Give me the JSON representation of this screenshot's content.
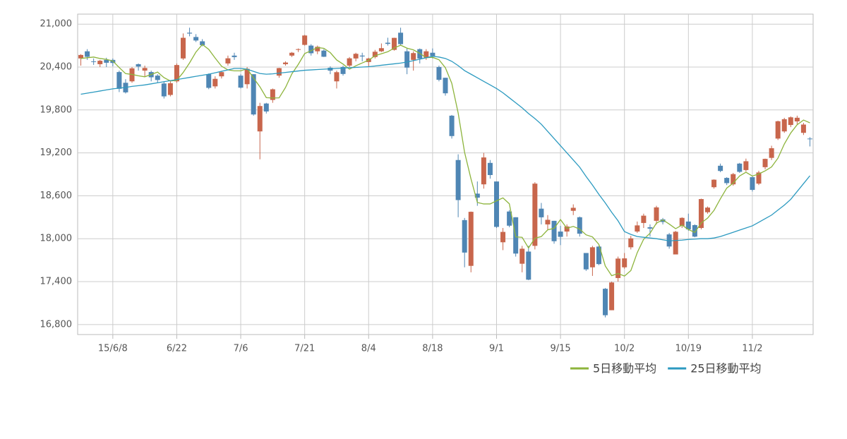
{
  "chart_data": {
    "type": "candlestick",
    "categories": [
      null,
      null,
      null,
      null,
      null,
      "15/6/8",
      null,
      null,
      null,
      null,
      null,
      null,
      null,
      null,
      null,
      "6/22",
      null,
      null,
      null,
      null,
      null,
      null,
      null,
      null,
      null,
      "7/6",
      null,
      null,
      null,
      null,
      null,
      null,
      null,
      null,
      null,
      "7/21",
      null,
      null,
      null,
      null,
      null,
      null,
      null,
      null,
      null,
      "8/4",
      null,
      null,
      null,
      null,
      null,
      null,
      null,
      null,
      null,
      "8/18",
      null,
      null,
      null,
      null,
      null,
      null,
      null,
      null,
      null,
      "9/1",
      null,
      null,
      null,
      null,
      null,
      null,
      null,
      null,
      null,
      "9/15",
      null,
      null,
      null,
      null,
      null,
      null,
      null,
      null,
      null,
      "10/2",
      null,
      null,
      null,
      null,
      null,
      null,
      null,
      null,
      null,
      "10/19",
      null,
      null,
      null,
      null,
      null,
      null,
      null,
      null,
      null,
      "11/2",
      null,
      null,
      null,
      null,
      null,
      null,
      null,
      null,
      null
    ],
    "open": [
      20520,
      20620,
      20480,
      20440,
      20500,
      20500,
      20330,
      20180,
      20200,
      20440,
      20350,
      20330,
      20280,
      20170,
      20010,
      20200,
      20520,
      20880,
      20820,
      20760,
      20300,
      20130,
      20270,
      20450,
      20560,
      20280,
      20160,
      20300,
      19500,
      19890,
      19940,
      20280,
      20440,
      20560,
      20640,
      20710,
      20700,
      20620,
      20630,
      20390,
      20200,
      20400,
      20420,
      20520,
      20560,
      20470,
      20540,
      20620,
      20740,
      20640,
      20880,
      20620,
      20500,
      20650,
      20530,
      20600,
      20400,
      20250,
      19720,
      19100,
      18260,
      17620,
      18630,
      18760,
      19060,
      18800,
      17950,
      18380,
      18300,
      17650,
      17820,
      17900,
      18420,
      18200,
      18250,
      18100,
      18100,
      18390,
      18300,
      17800,
      17600,
      17890,
      17300,
      17000,
      17450,
      17600,
      17880,
      18100,
      18220,
      18160,
      18250,
      18270,
      18060,
      17780,
      18180,
      18240,
      18190,
      18150,
      18370,
      18720,
      19020,
      18850,
      18760,
      19050,
      18960,
      18860,
      18770,
      19000,
      19130,
      19400,
      19500,
      19590,
      19640,
      19480,
      19400
    ],
    "high": [
      20580,
      20650,
      20520,
      20500,
      20530,
      20520,
      20350,
      20230,
      20400,
      20450,
      20420,
      20350,
      20300,
      20200,
      20200,
      20450,
      20870,
      20950,
      20860,
      20790,
      20310,
      20270,
      20340,
      20560,
      20600,
      20300,
      20400,
      20300,
      19900,
      19900,
      20100,
      20390,
      20480,
      20610,
      20660,
      20850,
      20720,
      20700,
      20650,
      20410,
      20350,
      20420,
      20540,
      20600,
      20600,
      20530,
      20640,
      20730,
      20810,
      20810,
      20950,
      20660,
      20620,
      20660,
      20650,
      20660,
      20420,
      20250,
      19730,
      19180,
      18290,
      18380,
      18800,
      19200,
      19100,
      18800,
      18150,
      18400,
      18300,
      17900,
      17900,
      18790,
      18500,
      18330,
      18250,
      18180,
      18200,
      18480,
      18310,
      17800,
      17900,
      17900,
      17310,
      17400,
      17750,
      17800,
      18040,
      18240,
      18350,
      18200,
      18460,
      18290,
      18080,
      18110,
      18300,
      18350,
      18200,
      18560,
      18450,
      18830,
      19050,
      18860,
      18920,
      19060,
      19120,
      18880,
      18950,
      19120,
      19300,
      19650,
      19690,
      19710,
      19720,
      19620,
      19420
    ],
    "low": [
      20420,
      20500,
      20430,
      20400,
      20400,
      20410,
      20050,
      20030,
      20180,
      20350,
      20260,
      20200,
      20180,
      19960,
      19990,
      20180,
      20500,
      20830,
      20750,
      20690,
      20090,
      20100,
      20240,
      20420,
      20500,
      20100,
      20100,
      19720,
      19110,
      19750,
      19900,
      20250,
      20420,
      20540,
      20610,
      20700,
      20560,
      20580,
      20540,
      20300,
      20100,
      20280,
      20400,
      20480,
      20480,
      20410,
      20520,
      20610,
      20700,
      20630,
      20700,
      20300,
      20350,
      20450,
      20500,
      20520,
      20200,
      20000,
      19400,
      18300,
      17600,
      17530,
      18460,
      18700,
      18840,
      18150,
      17840,
      18160,
      17750,
      17530,
      17420,
      17850,
      18200,
      18130,
      17930,
      17910,
      18030,
      18330,
      18030,
      17550,
      17480,
      17630,
      16900,
      17000,
      17400,
      17580,
      17850,
      18080,
      18150,
      18030,
      18200,
      18200,
      17860,
      17780,
      18150,
      18110,
      18020,
      18130,
      18350,
      18700,
      18930,
      18750,
      18740,
      18920,
      18940,
      18660,
      18750,
      18970,
      19100,
      19380,
      19480,
      19560,
      19600,
      19450,
      19290
    ],
    "close": [
      20569,
      20543,
      20473,
      20488,
      20460,
      20457,
      20096,
      20046,
      20382,
      20407,
      20387,
      20257,
      20219,
      19990,
      20174,
      20428,
      20809,
      20868,
      20771,
      20706,
      20109,
      20235,
      20329,
      20522,
      20539,
      20112,
      20376,
      19737,
      19855,
      19779,
      20089,
      20385,
      20463,
      20600,
      20650,
      20841,
      20593,
      20683,
      20544,
      20350,
      20328,
      20303,
      20522,
      20585,
      20548,
      20520,
      20614,
      20664,
      20724,
      20808,
      20720,
      20392,
      20595,
      20519,
      20620,
      20554,
      20222,
      20033,
      19435,
      18540,
      17806,
      18376,
      18574,
      19136,
      18890,
      18165,
      18095,
      18182,
      17792,
      17860,
      17427,
      18770,
      18299,
      18264,
      17965,
      18026,
      18171,
      18432,
      18070,
      17571,
      17880,
      17645,
      16930,
      17388,
      17722,
      17725,
      18005,
      18186,
      18322,
      18141,
      18438,
      18234,
      17891,
      18097,
      18291,
      18131,
      18029,
      18554,
      18435,
      18825,
      18947,
      18777,
      18903,
      18935,
      19083,
      18683,
      18926,
      19116,
      19265,
      19642,
      19671,
      19697,
      19691,
      19596,
      19393
    ],
    "up_color": "#c8664c",
    "down_color": "#4f86b4",
    "series": [
      {
        "name": "5日移動平均",
        "color": "#8db43c",
        "values": [
          20520,
          20530,
          20540,
          20520,
          20507,
          20484,
          20393,
          20308,
          20297,
          20278,
          20264,
          20296,
          20330,
          20252,
          20205,
          20214,
          20324,
          20458,
          20610,
          20716,
          20647,
          20526,
          20412,
          20360,
          20347,
          20347,
          20376,
          20247,
          20124,
          19972,
          19967,
          19969,
          20114,
          20305,
          20437,
          20588,
          20629,
          20673,
          20662,
          20602,
          20499,
          20441,
          20370,
          20418,
          20457,
          20496,
          20558,
          20586,
          20614,
          20666,
          20706,
          20664,
          20640,
          20591,
          20531,
          20536,
          20502,
          20390,
          20173,
          19757,
          19208,
          18838,
          18507,
          18486,
          18486,
          18530,
          18570,
          18488,
          18025,
          18019,
          17871,
          18006,
          18030,
          18124,
          18145,
          18267,
          18145,
          18172,
          18134,
          18054,
          18025,
          17920,
          17619,
          17483,
          17513,
          17478,
          17554,
          17805,
          17992,
          18076,
          18218,
          18264,
          18205,
          18140,
          18190,
          18129,
          18088,
          18220,
          18288,
          18395,
          18558,
          18708,
          18777,
          18877,
          18929,
          18876,
          18905,
          18949,
          19003,
          19126,
          19324,
          19478,
          19593,
          19659,
          19620
        ]
      },
      {
        "name": "25日移動平均",
        "color": "#2c9ac0",
        "values": [
          20020,
          20035,
          20050,
          20065,
          20080,
          20095,
          20105,
          20115,
          20130,
          20140,
          20150,
          20165,
          20180,
          20195,
          20210,
          20225,
          20240,
          20255,
          20270,
          20285,
          20300,
          20320,
          20340,
          20360,
          20380,
          20380,
          20370,
          20340,
          20310,
          20300,
          20305,
          20315,
          20325,
          20335,
          20345,
          20355,
          20360,
          20365,
          20370,
          20375,
          20380,
          20385,
          20390,
          20395,
          20400,
          20405,
          20415,
          20425,
          20435,
          20445,
          20455,
          20470,
          20490,
          20510,
          20530,
          20550,
          20540,
          20520,
          20480,
          20420,
          20350,
          20300,
          20250,
          20200,
          20150,
          20100,
          20040,
          19970,
          19900,
          19830,
          19750,
          19680,
          19600,
          19500,
          19400,
          19300,
          19200,
          19100,
          19000,
          18870,
          18750,
          18620,
          18500,
          18370,
          18250,
          18100,
          18060,
          18030,
          18020,
          18010,
          18000,
          17985,
          17970,
          17975,
          17980,
          17990,
          17995,
          18000,
          18000,
          18010,
          18030,
          18060,
          18090,
          18120,
          18150,
          18180,
          18230,
          18280,
          18330,
          18400,
          18470,
          18550,
          18660,
          18770,
          18880
        ]
      }
    ],
    "ylim": [
      16660,
      21140
    ],
    "yticks": [
      {
        "value": 16800,
        "label": "16,800"
      },
      {
        "value": 17400,
        "label": "17,400"
      },
      {
        "value": 18000,
        "label": "18,000"
      },
      {
        "value": 18600,
        "label": "18,600"
      },
      {
        "value": 19200,
        "label": "19,200"
      },
      {
        "value": 19800,
        "label": "19,800"
      },
      {
        "value": 20400,
        "label": "20,400"
      },
      {
        "value": 21000,
        "label": "21,000"
      }
    ],
    "grid": true
  }
}
